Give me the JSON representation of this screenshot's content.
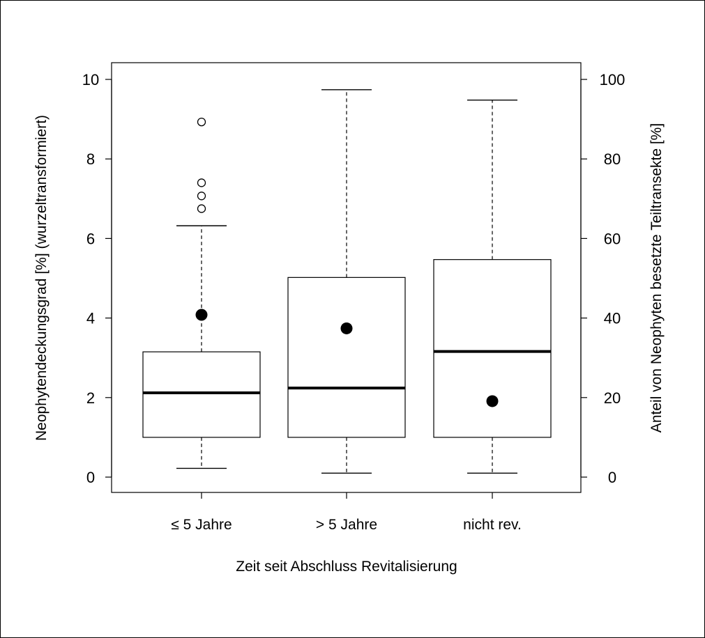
{
  "chart_data": {
    "type": "box",
    "xlabel": "Zeit seit Abschluss Revitalisierung",
    "ylabel_left": "Neophytendeckungsgrad [%] (wurzeltransformiert)",
    "ylabel_right": "Anteil von Neophyten besetzte Teiltransekte [%]",
    "ylim_left": [
      0,
      10
    ],
    "ylim_right": [
      0,
      100
    ],
    "yticks_left": [
      "0",
      "2",
      "4",
      "6",
      "8",
      "10"
    ],
    "yticks_right": [
      "0",
      "20",
      "40",
      "60",
      "80",
      "100"
    ],
    "categories": [
      "≤ 5 Jahre",
      "> 5 Jahre",
      "nicht rev."
    ],
    "boxes": [
      {
        "whisker_low": 0.22,
        "q1": 1.0,
        "median": 2.12,
        "q3": 3.15,
        "whisker_high": 6.32,
        "outliers": [
          6.75,
          7.07,
          7.4,
          8.93
        ],
        "right_axis_point": 40.8
      },
      {
        "whisker_low": 0.1,
        "q1": 1.0,
        "median": 2.24,
        "q3": 5.02,
        "whisker_high": 9.74,
        "outliers": [],
        "right_axis_point": 37.4
      },
      {
        "whisker_low": 0.1,
        "q1": 1.0,
        "median": 3.16,
        "q3": 5.47,
        "whisker_high": 9.48,
        "outliers": [],
        "right_axis_point": 19.1
      }
    ],
    "grid": false
  }
}
